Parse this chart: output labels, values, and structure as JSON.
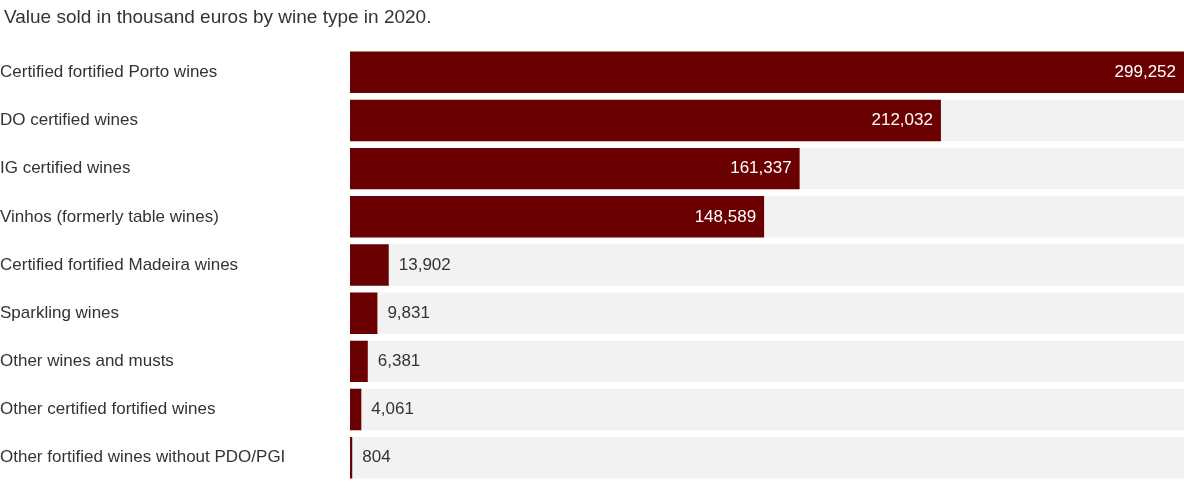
{
  "chart_data": {
    "type": "bar",
    "orientation": "horizontal",
    "title": "Value sold in thousand euros by wine type in 2020.",
    "categories": [
      "Certified fortified Porto wines",
      "DO certified wines",
      "IG certified wines",
      "Vinhos (formerly table wines)",
      "Certified fortified Madeira wines",
      "Sparkling wines",
      "Other wines and musts",
      "Other certified fortified wines",
      "Other fortified wines without PDO/PGI"
    ],
    "values": [
      299252,
      212032,
      161337,
      148589,
      13902,
      9831,
      6381,
      4061,
      804
    ],
    "value_labels": [
      "299,252",
      "212,032",
      "161,337",
      "148,589",
      "13,902",
      "9,831",
      "6,381",
      "4,061",
      "804"
    ],
    "color": "#6b0000",
    "grid": false,
    "legend": false,
    "tick_labels": "y"
  }
}
